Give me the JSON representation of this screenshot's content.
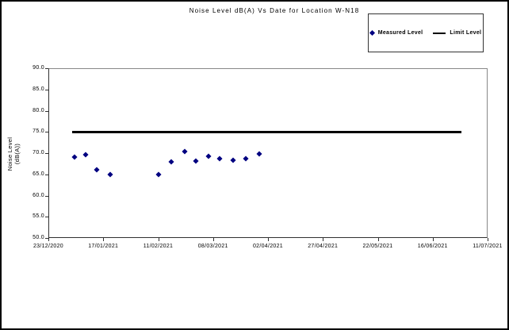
{
  "chart_data": {
    "type": "scatter",
    "title": "Noise Level dB(A) Vs Date for Location W-N18",
    "xlabel": "",
    "ylabel": "Noise Level (dB(A))",
    "ylim": [
      50.0,
      90.0
    ],
    "y_tick_step": 5.0,
    "y_tick_labels": [
      "90.0",
      "85.0",
      "80.0",
      "75.0",
      "70.0",
      "65.0",
      "60.0",
      "55.0",
      "50.0"
    ],
    "x_tick_labels": [
      "23/12/2020",
      "17/01/2021",
      "11/02/2021",
      "08/03/2021",
      "02/04/2021",
      "27/04/2021",
      "22/05/2021",
      "16/06/2021",
      "11/07/2021"
    ],
    "grid": false,
    "legend_position": "top-right",
    "series": [
      {
        "name": "Measured Level",
        "type": "scatter",
        "marker": "diamond",
        "color": "#000080",
        "points": [
          {
            "date": "04/01/2021",
            "value": 69.0
          },
          {
            "date": "09/01/2021",
            "value": 69.6
          },
          {
            "date": "14/01/2021",
            "value": 66.1
          },
          {
            "date": "20/01/2021",
            "value": 65.0
          },
          {
            "date": "11/02/2021",
            "value": 64.9
          },
          {
            "date": "17/02/2021",
            "value": 68.0
          },
          {
            "date": "23/02/2021",
            "value": 70.4
          },
          {
            "date": "28/02/2021",
            "value": 68.2
          },
          {
            "date": "06/03/2021",
            "value": 69.2
          },
          {
            "date": "11/03/2021",
            "value": 68.7
          },
          {
            "date": "17/03/2021",
            "value": 68.3
          },
          {
            "date": "23/03/2021",
            "value": 68.7
          },
          {
            "date": "29/03/2021",
            "value": 69.8
          }
        ]
      },
      {
        "name": "Limit Level",
        "type": "hline",
        "color": "#000000",
        "value": 75.0,
        "start_date": "03/01/2021",
        "end_date": "29/06/2021"
      }
    ]
  }
}
